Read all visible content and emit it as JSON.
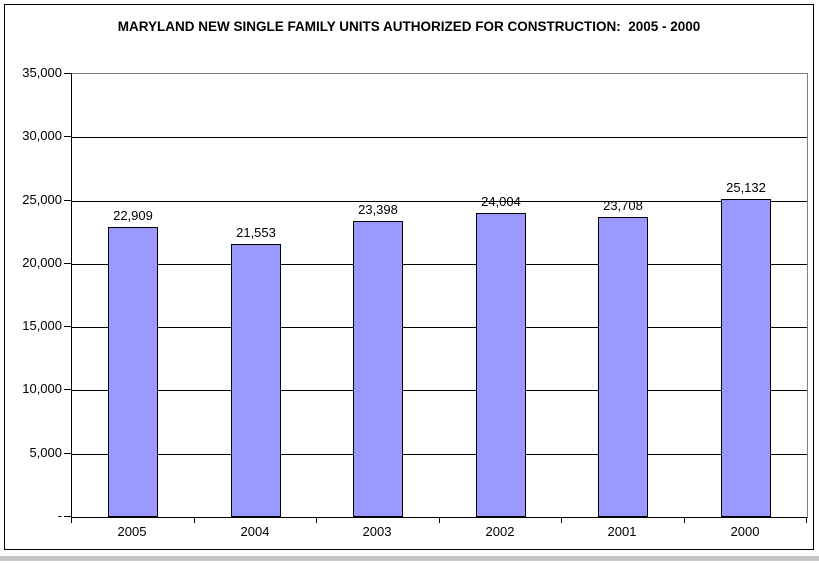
{
  "window": {
    "bottom_strip_color": "#c6c6c6"
  },
  "chart_data": {
    "type": "bar",
    "title": "MARYLAND NEW SINGLE FAMILY UNITS AUTHORIZED FOR CONSTRUCTION:  2005 - 2000",
    "categories": [
      "2005",
      "2004",
      "2003",
      "2002",
      "2001",
      "2000"
    ],
    "values": [
      22909,
      21553,
      23398,
      24004,
      23708,
      25132
    ],
    "value_labels": [
      "22,909",
      "21,553",
      "23,398",
      "24,004",
      "23,708",
      "25,132"
    ],
    "xlabel": "",
    "ylabel": "",
    "ylim": [
      0,
      35000
    ],
    "y_ticks": [
      {
        "label": "35,000",
        "value": 35000
      },
      {
        "label": "30,000",
        "value": 30000
      },
      {
        "label": "25,000",
        "value": 25000
      },
      {
        "label": "20,000",
        "value": 20000
      },
      {
        "label": "15,000",
        "value": 15000
      },
      {
        "label": "10,000",
        "value": 10000
      },
      {
        "label": "5,000",
        "value": 5000
      },
      {
        "label": "-",
        "value": 0
      }
    ],
    "grid": true,
    "legend": false,
    "colors": {
      "bar_fill": "#9999ff",
      "bar_border": "#000000",
      "gridline": "#000000",
      "axis": "#000000",
      "plot_border": "#808080",
      "text": "#000000",
      "background": "#ffffff"
    }
  }
}
